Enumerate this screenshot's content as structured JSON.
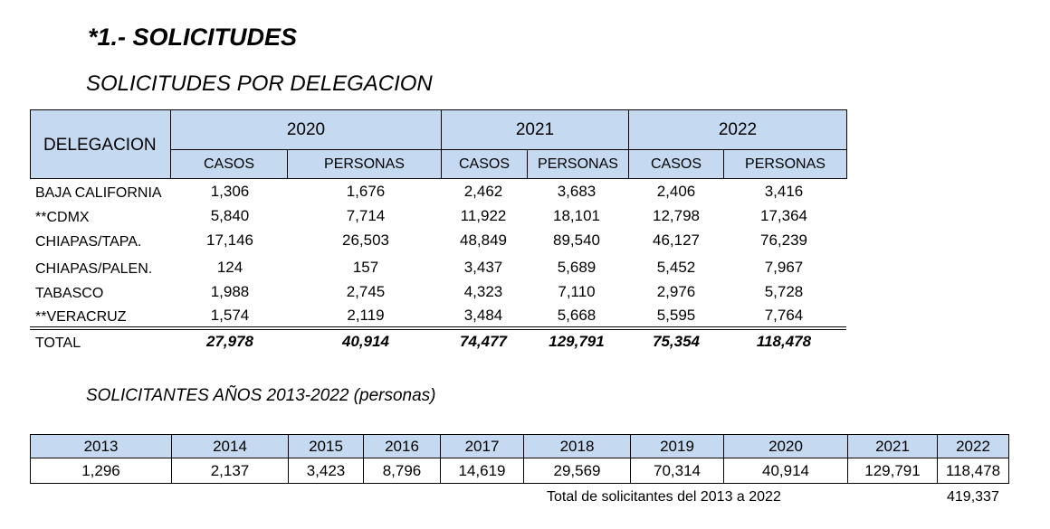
{
  "title": "*1.- SOLICITUDES",
  "table1": {
    "title": "SOLICITUDES POR DELEGACION",
    "header_label": "DELEGACION",
    "years": [
      "2020",
      "2021",
      "2022"
    ],
    "sub_headers": [
      "CASOS",
      "PERSONAS",
      "CASOS",
      "PERSONAS",
      "CASOS",
      "PERSONAS"
    ],
    "rows": [
      {
        "label": "BAJA CALIFORNIA",
        "values": [
          "1,306",
          "1,676",
          "2,462",
          "3,683",
          "2,406",
          "3,416"
        ]
      },
      {
        "label": "**CDMX",
        "values": [
          "5,840",
          "7,714",
          "11,922",
          "18,101",
          "12,798",
          "17,364"
        ]
      },
      {
        "label": "CHIAPAS/TAPA.",
        "values": [
          "17,146",
          "26,503",
          "48,849",
          "89,540",
          "46,127",
          "76,239"
        ]
      },
      {
        "label": "CHIAPAS/PALEN.",
        "values": [
          "124",
          "157",
          "3,437",
          "5,689",
          "5,452",
          "7,967"
        ]
      },
      {
        "label": "TABASCO",
        "values": [
          "1,988",
          "2,745",
          "4,323",
          "7,110",
          "2,976",
          "5,728"
        ]
      },
      {
        "label": "**VERACRUZ",
        "values": [
          "1,574",
          "2,119",
          "3,484",
          "5,668",
          "5,595",
          "7,764"
        ]
      }
    ],
    "total": {
      "label": "TOTAL",
      "values": [
        "27,978",
        "40,914",
        "74,477",
        "129,791",
        "75,354",
        "118,478"
      ]
    }
  },
  "table2": {
    "title": "SOLICITANTES AÑOS 2013-2022 (personas)",
    "years": [
      "2013",
      "2014",
      "2015",
      "2016",
      "2017",
      "2018",
      "2019",
      "2020",
      "2021",
      "2022"
    ],
    "values": [
      "1,296",
      "2,137",
      "3,423",
      "8,796",
      "14,619",
      "29,569",
      "70,314",
      "40,914",
      "129,791",
      "118,478"
    ],
    "total_label": "Total de solicitantes del 2013 a 2022",
    "total_value": "419,337"
  },
  "colors": {
    "header_fill": "#c5d9f1"
  }
}
